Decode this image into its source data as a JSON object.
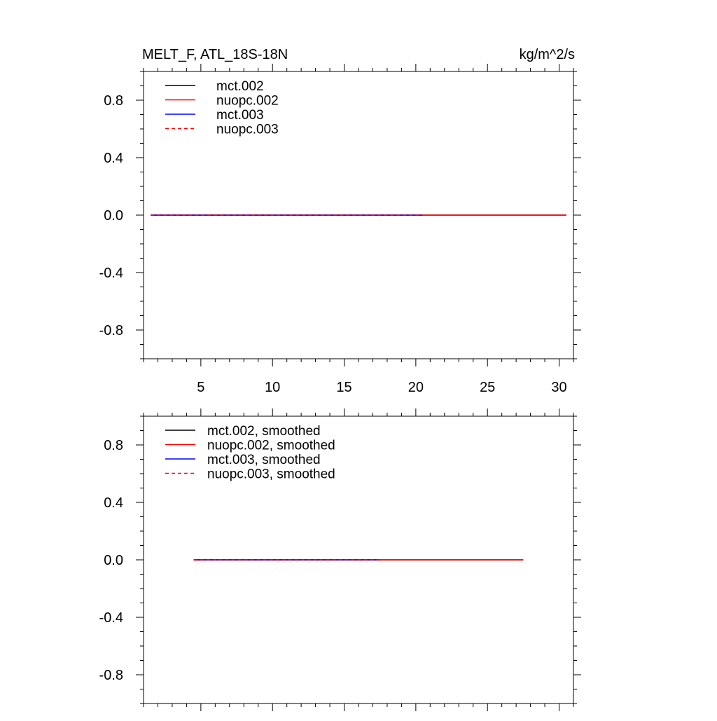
{
  "chart_data": [
    {
      "type": "line",
      "title": "MELT_F, ATL_18S-18N",
      "units": "kg/m^2/s",
      "xlabel": "",
      "ylabel": "",
      "xlim": [
        1,
        31
      ],
      "ylim": [
        -1.0,
        1.0
      ],
      "x_ticks": [
        5,
        10,
        15,
        20,
        25,
        30
      ],
      "x_tick_labels": [
        "5",
        "10",
        "15",
        "20",
        "25",
        "30"
      ],
      "y_ticks": [
        -0.8,
        -0.4,
        0.0,
        0.4,
        0.8
      ],
      "y_tick_labels": [
        "-0.8",
        "-0.4",
        "0.0",
        "0.4",
        "0.8"
      ],
      "legend_position": "top-left",
      "series": [
        {
          "name": "mct.002",
          "color": "#000000",
          "dash": "solid",
          "x": [
            1.5,
            30.5
          ],
          "values": [
            0,
            0
          ]
        },
        {
          "name": "nuopc.002",
          "color": "#ff0000",
          "dash": "solid",
          "x": [
            1.5,
            30.5
          ],
          "values": [
            0,
            0
          ]
        },
        {
          "name": "mct.003",
          "color": "#0000ff",
          "dash": "solid",
          "x": [
            1.5,
            20.5
          ],
          "values": [
            0,
            0
          ]
        },
        {
          "name": "nuopc.003",
          "color": "#ff0000",
          "dash": "dashed",
          "x": [
            1.5,
            20.5
          ],
          "values": [
            0,
            0
          ]
        }
      ]
    },
    {
      "type": "line",
      "title": "",
      "xlabel": "",
      "ylabel": "",
      "xlim": [
        1,
        31
      ],
      "ylim": [
        -1.0,
        1.0
      ],
      "x_ticks": [
        5,
        10,
        15,
        20,
        25,
        30
      ],
      "x_tick_labels": [],
      "y_ticks": [
        -0.8,
        -0.4,
        0.0,
        0.4,
        0.8
      ],
      "y_tick_labels": [
        "-0.8",
        "-0.4",
        "0.0",
        "0.4",
        "0.8"
      ],
      "legend_position": "top-left",
      "series": [
        {
          "name": "mct.002, smoothed",
          "color": "#000000",
          "dash": "solid",
          "x": [
            4.5,
            27.5
          ],
          "values": [
            0,
            0
          ]
        },
        {
          "name": "nuopc.002, smoothed",
          "color": "#ff0000",
          "dash": "solid",
          "x": [
            4.5,
            27.5
          ],
          "values": [
            0,
            0
          ]
        },
        {
          "name": "mct.003, smoothed",
          "color": "#0000ff",
          "dash": "solid",
          "x": [
            4.5,
            17.5
          ],
          "values": [
            0,
            0
          ]
        },
        {
          "name": "nuopc.003, smoothed",
          "color": "#ff0000",
          "dash": "dashed",
          "x": [
            4.5,
            17.5
          ],
          "values": [
            0,
            0
          ]
        }
      ]
    }
  ]
}
